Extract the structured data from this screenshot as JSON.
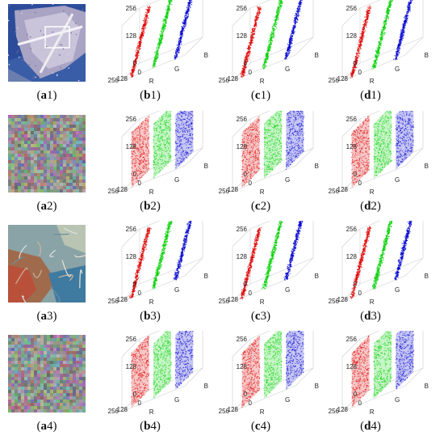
{
  "figure": {
    "rows": [
      {
        "image": "aerial-airport",
        "image_caption": "(a1)",
        "plots": [
          {
            "caption": "(b1)",
            "style": "diagonal"
          },
          {
            "caption": "(c1)",
            "style": "diagonal"
          },
          {
            "caption": "(d1)",
            "style": "diagonal"
          }
        ]
      },
      {
        "image": "noise",
        "image_caption": "(a2)",
        "plots": [
          {
            "caption": "(b2)",
            "style": "planes"
          },
          {
            "caption": "(c2)",
            "style": "planes"
          },
          {
            "caption": "(d2)",
            "style": "planes"
          }
        ]
      },
      {
        "image": "aerial-terrain",
        "image_caption": "(a3)",
        "plots": [
          {
            "caption": "(b3)",
            "style": "diagonal"
          },
          {
            "caption": "(c3)",
            "style": "diagonal"
          },
          {
            "caption": "(d3)",
            "style": "diagonal"
          }
        ]
      },
      {
        "image": "noise",
        "image_caption": "(a4)",
        "plots": [
          {
            "caption": "(b4)",
            "style": "planes"
          },
          {
            "caption": "(c4)",
            "style": "planes"
          },
          {
            "caption": "(d4)",
            "style": "planes"
          }
        ]
      }
    ]
  },
  "chart_data": {
    "type": "scatter",
    "projection": "3d",
    "axes": {
      "R": [
        0,
        256
      ],
      "G": [
        0,
        256
      ],
      "B": [
        0,
        256
      ]
    },
    "axis_labels": {
      "r": "R",
      "g": "G",
      "b": "B"
    },
    "ticks": {
      "vertical": [
        "256",
        "128",
        "0"
      ],
      "depth": [
        "256",
        "128",
        "0"
      ]
    },
    "colors": {
      "R": "#e00000",
      "G": "#00d000",
      "B": "#0000d0"
    },
    "series": [
      {
        "name": "R"
      },
      {
        "name": "G"
      },
      {
        "name": "B"
      }
    ],
    "styles": {
      "diagonal": "channel values concentrated along the diagonal (correlated pixels)",
      "planes": "channel values uniformly spread over planes (uncorrelated pixels)"
    }
  }
}
